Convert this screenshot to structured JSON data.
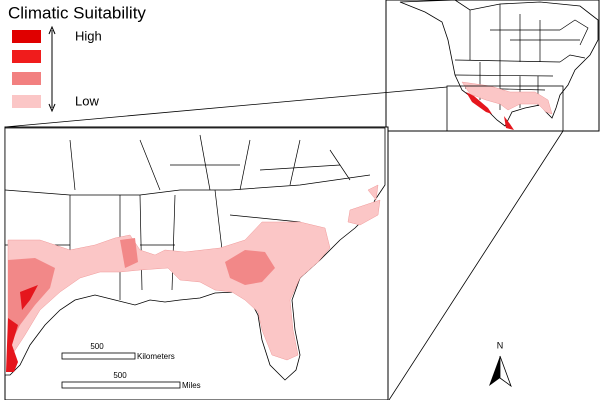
{
  "legend": {
    "title": "Climatic Suitability",
    "high_label": "High",
    "low_label": "Low",
    "colors": [
      "#e00000",
      "#f01c1c",
      "#f28080",
      "#fbc6c6"
    ]
  },
  "scale_bars": [
    {
      "length": "500",
      "unit": "Kilometers"
    },
    {
      "length": "500",
      "unit": "Miles"
    }
  ],
  "north_arrow": {
    "label": "N"
  }
}
